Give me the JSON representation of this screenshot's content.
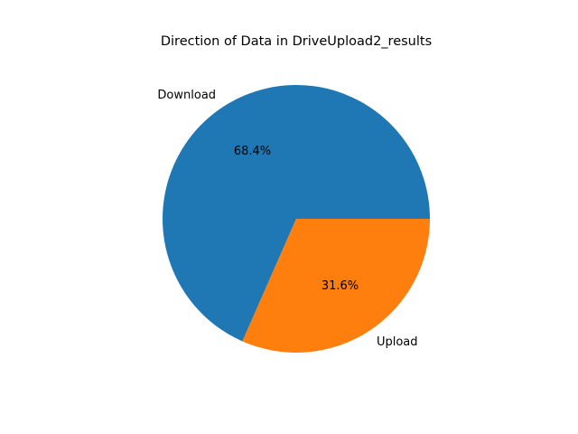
{
  "chart_data": {
    "type": "pie",
    "title": "Direction of Data in DriveUpload2_results",
    "slices": [
      {
        "label": "Download",
        "value": 68.4,
        "pct_label": "68.4%",
        "color": "#1f77b4"
      },
      {
        "label": "Upload",
        "value": 31.6,
        "pct_label": "31.6%",
        "color": "#ff7f0e"
      }
    ],
    "start_angle_deg": 0,
    "direction": "counterclockwise",
    "legend": false
  }
}
